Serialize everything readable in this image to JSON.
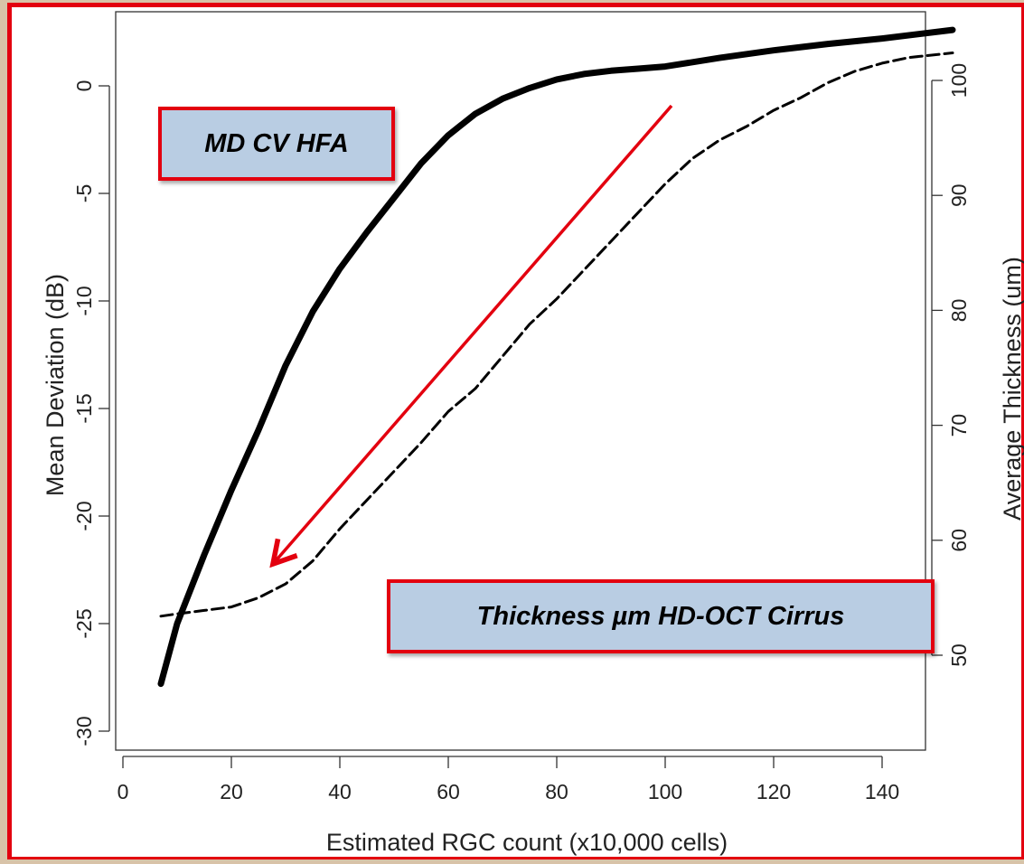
{
  "annotations": {
    "md": "MD CV HFA",
    "thickness": "Thickness µm HD-OCT Cirrus"
  },
  "colors": {
    "frame": "#e3000f",
    "arrow": "#e3000f",
    "callout_fill": "#b9cde3",
    "line": "#000000"
  },
  "chart_data": {
    "type": "line",
    "title": "",
    "xlabel": "Estimated RGC count (x10,000 cells)",
    "ylabel": "Mean Deviation (dB)",
    "y2label": "Average Thickness (um)",
    "xlim": [
      0,
      155
    ],
    "ylim": [
      -30,
      2.5
    ],
    "y2lim": [
      50,
      103
    ],
    "xticks": [
      0,
      20,
      40,
      60,
      80,
      100,
      120,
      140
    ],
    "yticks": [
      0,
      -5,
      -10,
      -15,
      -20,
      -25,
      -30
    ],
    "y2ticks": [
      100,
      90,
      80,
      70,
      60,
      50
    ],
    "grid": false,
    "series": [
      {
        "axis": "left",
        "style": "solid",
        "x": [
          7,
          10,
          15,
          20,
          25,
          30,
          35,
          40,
          45,
          50,
          55,
          60,
          65,
          70,
          75,
          80,
          85,
          90,
          95,
          100,
          110,
          120,
          130,
          140,
          153
        ],
        "y": [
          -27.8,
          -25.0,
          -21.8,
          -18.8,
          -16.0,
          -13.0,
          -10.5,
          -8.5,
          -6.8,
          -5.2,
          -3.6,
          -2.3,
          -1.3,
          -0.6,
          -0.1,
          0.3,
          0.55,
          0.7,
          0.8,
          0.9,
          1.3,
          1.65,
          1.95,
          2.2,
          2.6
        ]
      },
      {
        "axis": "right",
        "style": "dashed",
        "x": [
          7,
          10,
          15,
          20,
          25,
          30,
          35,
          40,
          45,
          50,
          55,
          60,
          65,
          70,
          75,
          80,
          85,
          90,
          95,
          100,
          105,
          110,
          115,
          120,
          125,
          130,
          135,
          140,
          145,
          153
        ],
        "y": [
          53.4,
          53.6,
          53.9,
          54.2,
          55.0,
          56.2,
          58.2,
          61.0,
          63.5,
          66.0,
          68.5,
          71.2,
          73.2,
          76.0,
          78.8,
          81.0,
          83.5,
          86.0,
          88.5,
          91.0,
          93.2,
          94.8,
          96.0,
          97.4,
          98.5,
          99.8,
          100.8,
          101.5,
          102.0,
          102.4
        ]
      }
    ]
  }
}
